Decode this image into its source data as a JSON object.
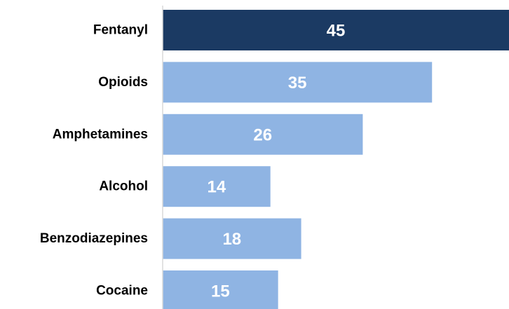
{
  "chart_data": {
    "type": "bar",
    "orientation": "horizontal",
    "title": "",
    "xlabel": "",
    "ylabel": "",
    "categories": [
      "Fentanyl",
      "Opioids",
      "Amphetamines",
      "Alcohol",
      "Benzodiazepines",
      "Cocaine"
    ],
    "values": [
      45,
      35,
      26,
      14,
      18,
      15
    ],
    "value_labels": [
      "45",
      "35",
      "26",
      "14",
      "18",
      "15"
    ],
    "highlight_index": 0,
    "colors": {
      "highlight": "#1b3a63",
      "default": "#8fb4e3",
      "axis": "#d9d9d9"
    },
    "xlim": [
      0,
      45
    ],
    "grid": false,
    "legend": "none"
  }
}
